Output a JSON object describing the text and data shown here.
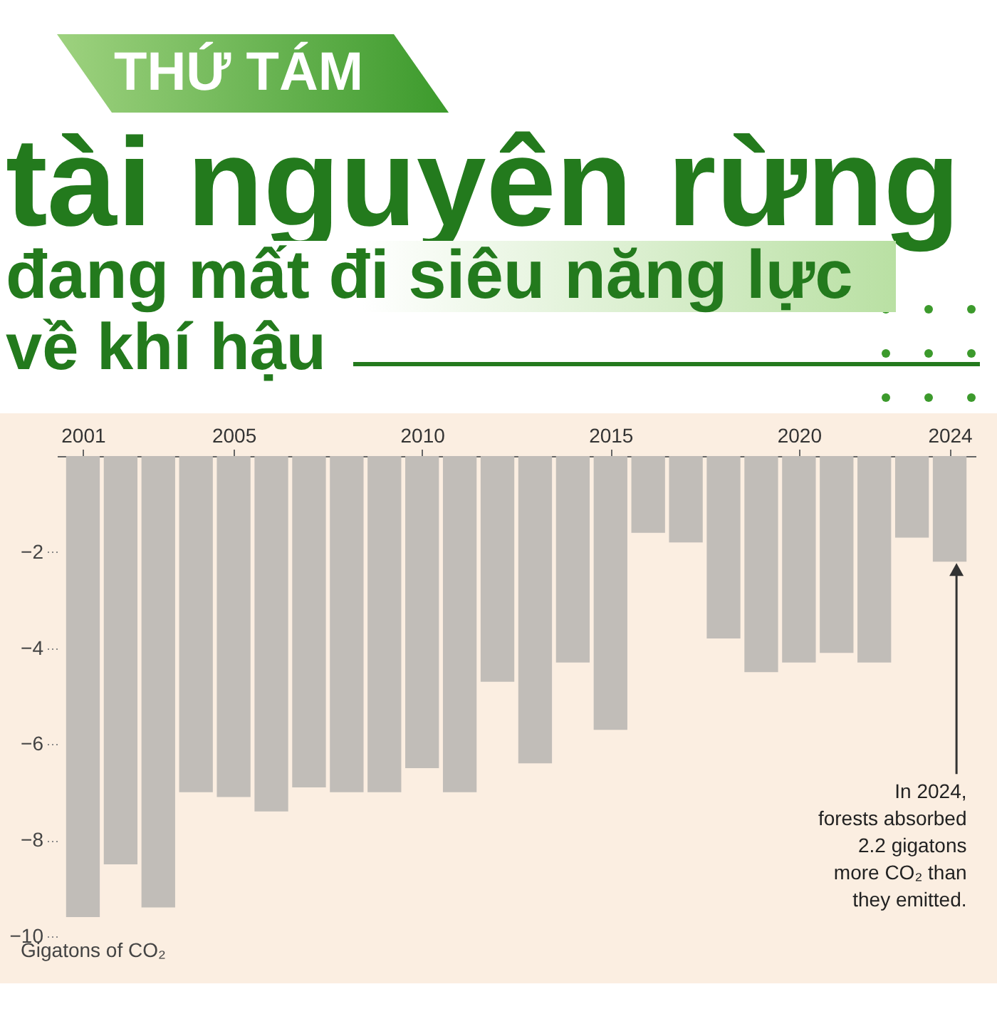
{
  "chart_data": {
    "type": "bar",
    "subtitle": "THỨ TÁM",
    "title": "tài nguyên rừng\nđang mất đi siêu năng lực\nvề khí hậu",
    "ylabel": "Gigatons of CO₂",
    "x": [
      2001,
      2002,
      2003,
      2004,
      2005,
      2006,
      2007,
      2008,
      2009,
      2010,
      2011,
      2012,
      2013,
      2014,
      2015,
      2016,
      2017,
      2018,
      2019,
      2020,
      2021,
      2022,
      2023,
      2024
    ],
    "values": [
      -9.6,
      -8.5,
      -9.4,
      -7.0,
      -7.1,
      -7.4,
      -6.9,
      -7.0,
      -7.0,
      -6.5,
      -7.0,
      -4.7,
      -6.4,
      -4.3,
      -5.7,
      -1.6,
      -1.8,
      -3.8,
      -4.5,
      -4.3,
      -4.1,
      -4.3,
      -1.7,
      -2.2
    ],
    "color": "#c1bdb8",
    "xlim": [
      2000.5,
      2024.5
    ],
    "xticks": [
      2001,
      2005,
      2010,
      2015,
      2020,
      2024
    ],
    "ylim": [
      -10,
      0
    ],
    "yticks": [
      -2,
      -4,
      -6,
      -8,
      -10
    ],
    "grid": false,
    "annotations": [
      {
        "text": "In 2024,\nforests absorbed\n2.2 gigatons\nmore CO₂ than\nthey emitted.",
        "x": 2024,
        "y": -2.2
      }
    ]
  }
}
